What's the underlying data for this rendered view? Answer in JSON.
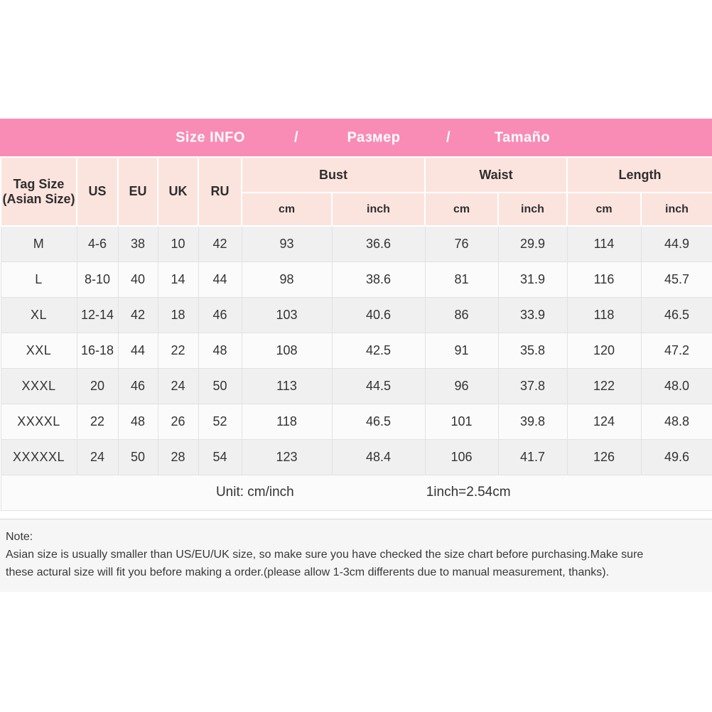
{
  "banner": {
    "items": [
      "Size INFO",
      "/",
      "Размер",
      "/",
      "Tamaño"
    ]
  },
  "header": {
    "tag_size_line1": "Tag Size",
    "tag_size_line2": "(Asian Size)",
    "size_systems": [
      "US",
      "EU",
      "UK",
      "RU"
    ],
    "groups": [
      {
        "label": "Bust",
        "units": [
          "cm",
          "inch"
        ]
      },
      {
        "label": "Waist",
        "units": [
          "cm",
          "inch"
        ]
      },
      {
        "label": "Length",
        "units": [
          "cm",
          "inch"
        ]
      }
    ]
  },
  "chart_data": {
    "type": "table",
    "title": "Size INFO / Размер / Tamaño",
    "columns": [
      "Tag Size (Asian Size)",
      "US",
      "EU",
      "UK",
      "RU",
      "Bust cm",
      "Bust inch",
      "Waist cm",
      "Waist inch",
      "Length cm",
      "Length inch"
    ],
    "column_keys": [
      "tag",
      "us",
      "eu",
      "uk",
      "ru",
      "bust-cm",
      "bust-inch",
      "waist-cm",
      "waist-inch",
      "length-cm",
      "length-inch"
    ],
    "rows": [
      [
        "M",
        "4-6",
        "38",
        "10",
        "42",
        "93",
        "36.6",
        "76",
        "29.9",
        "114",
        "44.9"
      ],
      [
        "L",
        "8-10",
        "40",
        "14",
        "44",
        "98",
        "38.6",
        "81",
        "31.9",
        "116",
        "45.7"
      ],
      [
        "XL",
        "12-14",
        "42",
        "18",
        "46",
        "103",
        "40.6",
        "86",
        "33.9",
        "118",
        "46.5"
      ],
      [
        "XXL",
        "16-18",
        "44",
        "22",
        "48",
        "108",
        "42.5",
        "91",
        "35.8",
        "120",
        "47.2"
      ],
      [
        "XXXL",
        "20",
        "46",
        "24",
        "50",
        "113",
        "44.5",
        "96",
        "37.8",
        "122",
        "48.0"
      ],
      [
        "XXXXL",
        "22",
        "48",
        "26",
        "52",
        "118",
        "46.5",
        "101",
        "39.8",
        "124",
        "48.8"
      ],
      [
        "XXXXXL",
        "24",
        "50",
        "28",
        "54",
        "123",
        "48.4",
        "106",
        "41.7",
        "126",
        "49.6"
      ]
    ]
  },
  "footer": {
    "unit_label": "Unit: cm/inch",
    "conversion": "1inch=2.54cm"
  },
  "note": {
    "title": "Note:",
    "line1": "Asian size is usually smaller than US/EU/UK size, so make sure you have checked the size chart before purchasing.Make sure",
    "line2": "these actural size will fit you before making a order.(please allow 1-3cm differents due to manual measurement, thanks)."
  },
  "colors": {
    "banner_pink": "#f98cb5",
    "header_pink": "#fce4de",
    "row_gray": "#f0f0f0",
    "row_white": "#fbfbfb",
    "note_bg": "#f6f6f6",
    "text": "#333333"
  }
}
